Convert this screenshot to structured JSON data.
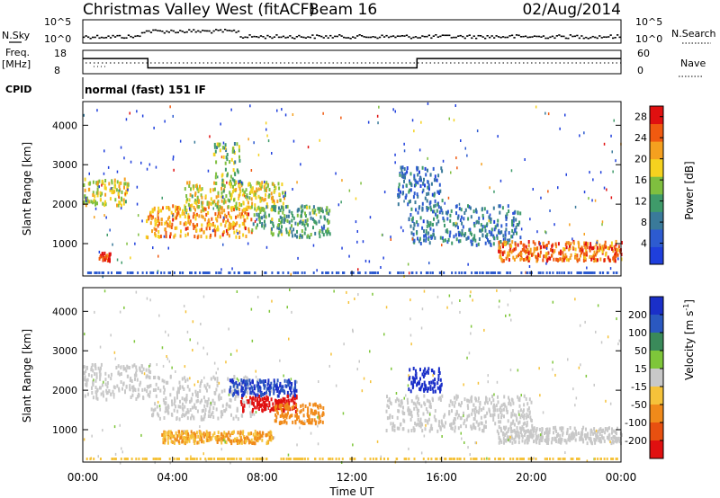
{
  "header": {
    "title": "Christmas Valley West (fitACF)",
    "beam": "Beam 16",
    "date": "02/Aug/2014"
  },
  "strip_labels": {
    "nsky": "N.Sky",
    "nsky_ticks": [
      "10^5",
      "10^0"
    ],
    "nsearch": "N.Search",
    "nsearch_ticks": [
      "10^5",
      "10^0"
    ],
    "freq_line1": "Freq.",
    "freq_line2": "[MHz]",
    "freq_ticks": [
      "18",
      "8"
    ],
    "nave": "Nave",
    "nave_ticks": [
      "60",
      "0"
    ],
    "cpid": "CPID",
    "cpid_value": "normal (fast) 151 IF"
  },
  "chart_data": [
    {
      "type": "line",
      "title": "",
      "xlabel": "",
      "ylabel": "Freq. [MHz]",
      "x_unit": "hours UT",
      "ylim": [
        8,
        18
      ],
      "series": [
        {
          "name": "Freq.",
          "x": [
            0,
            2.9,
            2.9,
            14.9,
            14.9,
            24
          ],
          "values": [
            14.5,
            14.5,
            10.5,
            10.5,
            14.5,
            14.5
          ]
        }
      ]
    },
    {
      "type": "heatmap",
      "title": "",
      "xlabel": "Time UT",
      "ylabel": "Slant Range [km]",
      "xticks": [
        "00:00",
        "04:00",
        "08:00",
        "12:00",
        "16:00",
        "20:00",
        "00:00"
      ],
      "xlim": [
        0,
        24
      ],
      "ylim": [
        180,
        4600
      ],
      "yticks": [
        "1000",
        "2000",
        "3000",
        "4000"
      ],
      "colorbar": {
        "label": "Power [dB]",
        "ticks": [
          "4",
          "8",
          "12",
          "16",
          "20",
          "24",
          "28"
        ],
        "range": [
          0,
          30
        ]
      },
      "regions": [
        {
          "t0": 0.0,
          "t1": 2.0,
          "r0": 2000,
          "r1": 2700,
          "value": 18
        },
        {
          "t0": 0.7,
          "t1": 1.2,
          "r0": 600,
          "r1": 800,
          "value": 26
        },
        {
          "t0": 2.8,
          "t1": 7.5,
          "r0": 1200,
          "r1": 2000,
          "value": 22
        },
        {
          "t0": 4.5,
          "t1": 9.0,
          "r0": 1900,
          "r1": 2600,
          "value": 18
        },
        {
          "t0": 5.8,
          "t1": 7.0,
          "r0": 2500,
          "r1": 3600,
          "value": 14
        },
        {
          "t0": 7.5,
          "t1": 11.0,
          "r0": 1200,
          "r1": 2000,
          "value": 12
        },
        {
          "t0": 14.5,
          "t1": 19.5,
          "r0": 1000,
          "r1": 2000,
          "value": 8
        },
        {
          "t0": 18.5,
          "t1": 24.0,
          "r0": 600,
          "r1": 1100,
          "value": 24
        },
        {
          "t0": 14.0,
          "t1": 16.0,
          "r0": 2000,
          "r1": 3000,
          "value": 6
        }
      ]
    },
    {
      "type": "heatmap",
      "title": "",
      "xlabel": "Time UT",
      "ylabel": "Slant Range [km]",
      "xticks": [
        "00:00",
        "04:00",
        "08:00",
        "12:00",
        "16:00",
        "20:00",
        "00:00"
      ],
      "xlim": [
        0,
        24
      ],
      "ylim": [
        180,
        4600
      ],
      "yticks": [
        "1000",
        "2000",
        "3000",
        "4000"
      ],
      "colorbar": {
        "label": "Velocity [m s^-1]",
        "ticks": [
          "200",
          "100",
          "50",
          "15",
          "-15",
          "-50",
          "-100",
          "-200"
        ]
      },
      "regions": [
        {
          "t0": 0.0,
          "t1": 3.0,
          "r0": 1800,
          "r1": 2700,
          "value": 0
        },
        {
          "t0": 3.0,
          "t1": 7.5,
          "r0": 1300,
          "r1": 2400,
          "value": 0
        },
        {
          "t0": 7.0,
          "t1": 9.5,
          "r0": 1500,
          "r1": 1900,
          "value": -180
        },
        {
          "t0": 6.5,
          "t1": 9.5,
          "r0": 1900,
          "r1": 2300,
          "value": 150
        },
        {
          "t0": 8.5,
          "t1": 10.7,
          "r0": 1200,
          "r1": 1700,
          "value": -60
        },
        {
          "t0": 14.5,
          "t1": 16.0,
          "r0": 2000,
          "r1": 2600,
          "value": 180
        },
        {
          "t0": 13.5,
          "t1": 20.0,
          "r0": 1000,
          "r1": 1900,
          "value": 0
        },
        {
          "t0": 18.5,
          "t1": 24.0,
          "r0": 700,
          "r1": 1100,
          "value": 0
        },
        {
          "t0": 3.5,
          "t1": 8.5,
          "r0": 700,
          "r1": 1000,
          "value": -40
        }
      ]
    }
  ],
  "colors": {
    "power_scale": [
      "#1f3fdc",
      "#2d5bd0",
      "#3a7a9a",
      "#3f9b6a",
      "#7fbf3f",
      "#f5d21f",
      "#f5a01f",
      "#f05a10",
      "#e01010"
    ],
    "velocity_scale": [
      "#1a2fc8",
      "#2a58c0",
      "#3a8a5a",
      "#7ec63a",
      "#c8c8c8",
      "#f5c23a",
      "#f08a1a",
      "#e85010",
      "#e01010"
    ]
  }
}
